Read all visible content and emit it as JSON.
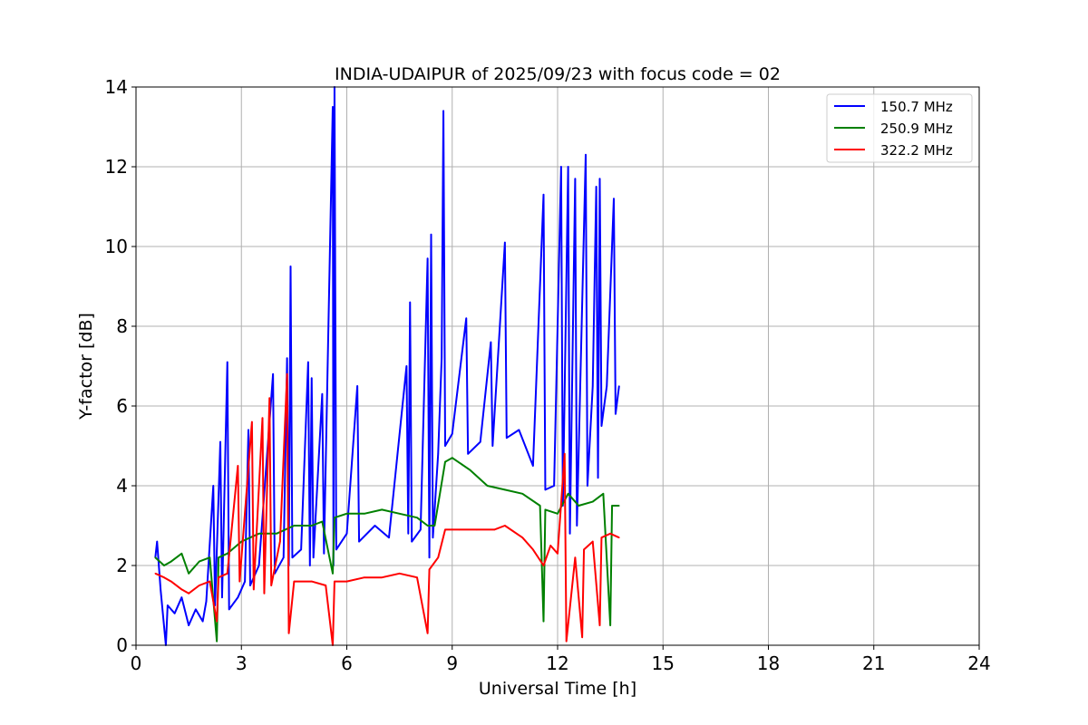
{
  "chart_data": {
    "type": "line",
    "title": "INDIA-UDAIPUR of 2025/09/23 with focus code = 02",
    "xlabel": "Universal Time [h]",
    "ylabel": "Y-factor [dB]",
    "xlim": [
      0,
      24
    ],
    "ylim": [
      0,
      14
    ],
    "xticks": [
      0,
      3,
      6,
      9,
      12,
      15,
      18,
      21,
      24
    ],
    "yticks": [
      0,
      2,
      4,
      6,
      8,
      10,
      12,
      14
    ],
    "grid": true,
    "legend_position": "top-right",
    "series": [
      {
        "name": "150.7 MHz",
        "color": "#0000ff",
        "points": [
          [
            0.55,
            2.2
          ],
          [
            0.6,
            2.6
          ],
          [
            0.7,
            1.4
          ],
          [
            0.85,
            0.0
          ],
          [
            0.9,
            1.0
          ],
          [
            1.1,
            0.8
          ],
          [
            1.3,
            1.2
          ],
          [
            1.5,
            0.5
          ],
          [
            1.7,
            0.9
          ],
          [
            1.9,
            0.6
          ],
          [
            2.0,
            1.1
          ],
          [
            2.2,
            4.0
          ],
          [
            2.25,
            1.0
          ],
          [
            2.4,
            5.1
          ],
          [
            2.45,
            1.2
          ],
          [
            2.6,
            7.1
          ],
          [
            2.65,
            0.9
          ],
          [
            2.9,
            1.2
          ],
          [
            3.1,
            1.6
          ],
          [
            3.2,
            5.4
          ],
          [
            3.25,
            1.5
          ],
          [
            3.5,
            2.0
          ],
          [
            3.9,
            6.8
          ],
          [
            3.95,
            1.8
          ],
          [
            4.2,
            2.2
          ],
          [
            4.3,
            7.2
          ],
          [
            4.35,
            2.0
          ],
          [
            4.4,
            9.5
          ],
          [
            4.45,
            2.2
          ],
          [
            4.7,
            2.4
          ],
          [
            4.9,
            7.1
          ],
          [
            4.95,
            2.0
          ],
          [
            5.0,
            6.7
          ],
          [
            5.05,
            2.2
          ],
          [
            5.3,
            6.3
          ],
          [
            5.35,
            2.3
          ],
          [
            5.6,
            13.5
          ],
          [
            5.62,
            2.0
          ],
          [
            5.65,
            14.0
          ],
          [
            5.7,
            2.4
          ],
          [
            6.0,
            2.8
          ],
          [
            6.3,
            6.5
          ],
          [
            6.35,
            2.6
          ],
          [
            6.8,
            3.0
          ],
          [
            7.2,
            2.7
          ],
          [
            7.7,
            7.0
          ],
          [
            7.75,
            2.8
          ],
          [
            7.8,
            8.6
          ],
          [
            7.85,
            2.6
          ],
          [
            8.1,
            2.9
          ],
          [
            8.3,
            9.7
          ],
          [
            8.35,
            2.2
          ],
          [
            8.4,
            10.3
          ],
          [
            8.45,
            2.7
          ],
          [
            8.6,
            4.8
          ],
          [
            8.7,
            7.2
          ],
          [
            8.75,
            13.4
          ],
          [
            8.8,
            5.0
          ],
          [
            9.0,
            5.3
          ],
          [
            9.4,
            8.2
          ],
          [
            9.45,
            4.8
          ],
          [
            9.8,
            5.1
          ],
          [
            10.1,
            7.6
          ],
          [
            10.15,
            5.0
          ],
          [
            10.5,
            10.1
          ],
          [
            10.55,
            5.2
          ],
          [
            10.9,
            5.4
          ],
          [
            11.3,
            4.5
          ],
          [
            11.6,
            11.3
          ],
          [
            11.65,
            3.9
          ],
          [
            11.9,
            4.0
          ],
          [
            12.1,
            12.0
          ],
          [
            12.15,
            3.5
          ],
          [
            12.3,
            12.0
          ],
          [
            12.35,
            2.8
          ],
          [
            12.5,
            11.7
          ],
          [
            12.55,
            3.0
          ],
          [
            12.8,
            12.3
          ],
          [
            12.85,
            4.0
          ],
          [
            13.0,
            6.5
          ],
          [
            13.1,
            11.5
          ],
          [
            13.15,
            4.2
          ],
          [
            13.2,
            11.7
          ],
          [
            13.25,
            5.5
          ],
          [
            13.4,
            6.5
          ],
          [
            13.6,
            11.2
          ],
          [
            13.65,
            5.8
          ],
          [
            13.75,
            6.5
          ]
        ]
      },
      {
        "name": "250.9 MHz",
        "color": "#008000",
        "points": [
          [
            0.55,
            2.2
          ],
          [
            0.8,
            2.0
          ],
          [
            1.0,
            2.1
          ],
          [
            1.3,
            2.3
          ],
          [
            1.5,
            1.8
          ],
          [
            1.8,
            2.1
          ],
          [
            2.1,
            2.2
          ],
          [
            2.3,
            0.1
          ],
          [
            2.35,
            2.2
          ],
          [
            2.6,
            2.3
          ],
          [
            3.0,
            2.6
          ],
          [
            3.5,
            2.8
          ],
          [
            4.0,
            2.8
          ],
          [
            4.5,
            3.0
          ],
          [
            5.0,
            3.0
          ],
          [
            5.3,
            3.1
          ],
          [
            5.6,
            1.8
          ],
          [
            5.65,
            3.2
          ],
          [
            6.0,
            3.3
          ],
          [
            6.5,
            3.3
          ],
          [
            7.0,
            3.4
          ],
          [
            7.5,
            3.3
          ],
          [
            8.0,
            3.2
          ],
          [
            8.3,
            3.0
          ],
          [
            8.5,
            3.0
          ],
          [
            8.8,
            4.6
          ],
          [
            9.0,
            4.7
          ],
          [
            9.5,
            4.4
          ],
          [
            10.0,
            4.0
          ],
          [
            10.5,
            3.9
          ],
          [
            11.0,
            3.8
          ],
          [
            11.5,
            3.5
          ],
          [
            11.6,
            0.6
          ],
          [
            11.65,
            3.4
          ],
          [
            12.0,
            3.3
          ],
          [
            12.3,
            3.8
          ],
          [
            12.6,
            3.5
          ],
          [
            13.0,
            3.6
          ],
          [
            13.3,
            3.8
          ],
          [
            13.5,
            0.5
          ],
          [
            13.55,
            3.5
          ],
          [
            13.75,
            3.5
          ]
        ]
      },
      {
        "name": "322.2 MHz",
        "color": "#ff0000",
        "points": [
          [
            0.55,
            1.8
          ],
          [
            0.8,
            1.7
          ],
          [
            1.0,
            1.6
          ],
          [
            1.3,
            1.4
          ],
          [
            1.5,
            1.3
          ],
          [
            1.8,
            1.5
          ],
          [
            2.1,
            1.6
          ],
          [
            2.3,
            0.6
          ],
          [
            2.35,
            1.7
          ],
          [
            2.6,
            1.8
          ],
          [
            2.9,
            4.5
          ],
          [
            2.95,
            1.6
          ],
          [
            3.3,
            5.6
          ],
          [
            3.35,
            1.4
          ],
          [
            3.6,
            5.7
          ],
          [
            3.65,
            1.3
          ],
          [
            3.8,
            6.2
          ],
          [
            3.85,
            1.5
          ],
          [
            4.1,
            2.6
          ],
          [
            4.3,
            6.8
          ],
          [
            4.35,
            0.3
          ],
          [
            4.5,
            1.6
          ],
          [
            5.0,
            1.6
          ],
          [
            5.4,
            1.5
          ],
          [
            5.6,
            0.0
          ],
          [
            5.65,
            1.6
          ],
          [
            6.0,
            1.6
          ],
          [
            6.5,
            1.7
          ],
          [
            7.0,
            1.7
          ],
          [
            7.5,
            1.8
          ],
          [
            8.0,
            1.7
          ],
          [
            8.3,
            0.3
          ],
          [
            8.35,
            1.9
          ],
          [
            8.6,
            2.2
          ],
          [
            8.8,
            2.9
          ],
          [
            9.2,
            2.9
          ],
          [
            9.7,
            2.9
          ],
          [
            10.2,
            2.9
          ],
          [
            10.5,
            3.0
          ],
          [
            11.0,
            2.7
          ],
          [
            11.3,
            2.4
          ],
          [
            11.6,
            2.0
          ],
          [
            11.8,
            2.5
          ],
          [
            12.0,
            2.3
          ],
          [
            12.2,
            4.8
          ],
          [
            12.25,
            0.1
          ],
          [
            12.5,
            2.2
          ],
          [
            12.7,
            0.2
          ],
          [
            12.75,
            2.4
          ],
          [
            13.0,
            2.6
          ],
          [
            13.2,
            0.5
          ],
          [
            13.25,
            2.7
          ],
          [
            13.5,
            2.8
          ],
          [
            13.75,
            2.7
          ]
        ]
      }
    ]
  }
}
